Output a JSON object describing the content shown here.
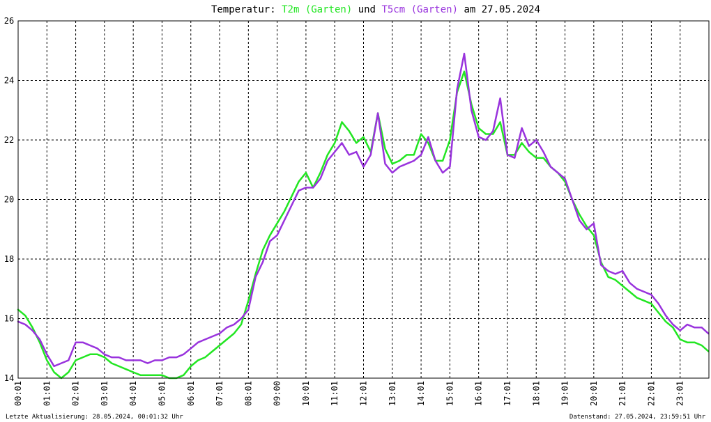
{
  "chart_data": {
    "type": "line",
    "title": {
      "prefix": "Temperatur:",
      "series1_label": "T2m (Garten)",
      "connector": "und",
      "series2_label": "T5cm (Garten)",
      "date_text": "am 27.05.2024"
    },
    "ylim": [
      14,
      26
    ],
    "yticks": [
      "14",
      "16",
      "18",
      "20",
      "22",
      "24",
      "26"
    ],
    "xlim": [
      0,
      24
    ],
    "xticks": [
      "00:01",
      "01:01",
      "02:01",
      "03:01",
      "04:01",
      "05:01",
      "06:01",
      "07:01",
      "08:01",
      "09:00",
      "10:01",
      "11:01",
      "12:01",
      "13:01",
      "14:01",
      "15:01",
      "16:01",
      "17:01",
      "18:01",
      "19:01",
      "20:01",
      "21:01",
      "22:01",
      "23:01"
    ],
    "grid": true,
    "footer_left": "Letzte Aktualisierung: 28.05.2024, 00:01:32 Uhr",
    "footer_right": "Datenstand: 27.05.2024, 23:59:51 Uhr",
    "series": [
      {
        "name": "T2m (Garten)",
        "color": "#22e622",
        "x": [
          0.0,
          0.25,
          0.5,
          0.75,
          1.0,
          1.25,
          1.5,
          1.75,
          2.0,
          2.25,
          2.5,
          2.75,
          3.0,
          3.25,
          3.5,
          3.75,
          4.0,
          4.25,
          4.5,
          4.75,
          5.0,
          5.25,
          5.5,
          5.75,
          6.0,
          6.25,
          6.5,
          6.75,
          7.0,
          7.25,
          7.5,
          7.75,
          8.0,
          8.25,
          8.5,
          8.75,
          9.0,
          9.25,
          9.5,
          9.75,
          10.0,
          10.25,
          10.5,
          10.75,
          11.0,
          11.25,
          11.5,
          11.75,
          12.0,
          12.25,
          12.5,
          12.75,
          13.0,
          13.25,
          13.5,
          13.75,
          14.0,
          14.25,
          14.5,
          14.75,
          15.0,
          15.25,
          15.5,
          15.75,
          16.0,
          16.25,
          16.5,
          16.75,
          17.0,
          17.25,
          17.5,
          17.75,
          18.0,
          18.25,
          18.5,
          18.75,
          19.0,
          19.25,
          19.5,
          19.75,
          20.0,
          20.25,
          20.5,
          20.75,
          21.0,
          21.25,
          21.5,
          21.75,
          22.0,
          22.25,
          22.5,
          22.75,
          23.0,
          23.25,
          23.5,
          23.75,
          23.98
        ],
        "values": [
          16.3,
          16.1,
          15.7,
          15.2,
          14.6,
          14.2,
          14.0,
          14.2,
          14.6,
          14.7,
          14.8,
          14.8,
          14.7,
          14.5,
          14.4,
          14.3,
          14.2,
          14.1,
          14.1,
          14.1,
          14.1,
          14.0,
          14.0,
          14.1,
          14.4,
          14.6,
          14.7,
          14.9,
          15.1,
          15.3,
          15.5,
          15.8,
          16.6,
          17.5,
          18.3,
          18.8,
          19.2,
          19.6,
          20.1,
          20.6,
          20.9,
          20.4,
          20.9,
          21.5,
          21.9,
          22.6,
          22.3,
          21.9,
          22.1,
          21.6,
          22.9,
          21.7,
          21.2,
          21.3,
          21.5,
          21.5,
          22.2,
          21.9,
          21.3,
          21.3,
          22.0,
          23.6,
          24.3,
          23.2,
          22.4,
          22.2,
          22.2,
          22.6,
          21.5,
          21.5,
          21.9,
          21.6,
          21.4,
          21.4,
          21.1,
          20.9,
          20.6,
          20.0,
          19.5,
          19.1,
          18.8,
          17.9,
          17.4,
          17.3,
          17.1,
          16.9,
          16.7,
          16.6,
          16.5,
          16.2,
          15.9,
          15.7,
          15.3,
          15.2,
          15.2,
          15.1,
          14.9
        ]
      },
      {
        "name": "T5cm (Garten)",
        "color": "#9933dd",
        "x": [
          0.0,
          0.25,
          0.5,
          0.75,
          1.0,
          1.25,
          1.5,
          1.75,
          2.0,
          2.25,
          2.5,
          2.75,
          3.0,
          3.25,
          3.5,
          3.75,
          4.0,
          4.25,
          4.5,
          4.75,
          5.0,
          5.25,
          5.5,
          5.75,
          6.0,
          6.25,
          6.5,
          6.75,
          7.0,
          7.25,
          7.5,
          7.75,
          8.0,
          8.25,
          8.5,
          8.75,
          9.0,
          9.25,
          9.5,
          9.75,
          10.0,
          10.25,
          10.5,
          10.75,
          11.0,
          11.25,
          11.5,
          11.75,
          12.0,
          12.25,
          12.5,
          12.75,
          13.0,
          13.25,
          13.5,
          13.75,
          14.0,
          14.25,
          14.5,
          14.75,
          15.0,
          15.25,
          15.5,
          15.75,
          16.0,
          16.25,
          16.5,
          16.75,
          17.0,
          17.25,
          17.5,
          17.75,
          18.0,
          18.25,
          18.5,
          18.75,
          19.0,
          19.25,
          19.5,
          19.75,
          20.0,
          20.25,
          20.5,
          20.75,
          21.0,
          21.25,
          21.5,
          21.75,
          22.0,
          22.25,
          22.5,
          22.75,
          23.0,
          23.25,
          23.5,
          23.75,
          23.98
        ],
        "values": [
          15.9,
          15.8,
          15.6,
          15.3,
          14.8,
          14.4,
          14.5,
          14.6,
          15.2,
          15.2,
          15.1,
          15.0,
          14.8,
          14.7,
          14.7,
          14.6,
          14.6,
          14.6,
          14.5,
          14.6,
          14.6,
          14.7,
          14.7,
          14.8,
          15.0,
          15.2,
          15.3,
          15.4,
          15.5,
          15.7,
          15.8,
          16.0,
          16.3,
          17.4,
          17.9,
          18.6,
          18.8,
          19.3,
          19.8,
          20.3,
          20.4,
          20.4,
          20.7,
          21.3,
          21.6,
          21.9,
          21.5,
          21.6,
          21.1,
          21.5,
          22.9,
          21.2,
          20.9,
          21.1,
          21.2,
          21.3,
          21.5,
          22.1,
          21.3,
          20.9,
          21.1,
          23.7,
          24.9,
          23.0,
          22.1,
          22.0,
          22.3,
          23.4,
          21.5,
          21.4,
          22.4,
          21.8,
          22.0,
          21.6,
          21.1,
          20.9,
          20.7,
          20.0,
          19.3,
          19.0,
          19.2,
          17.8,
          17.6,
          17.5,
          17.6,
          17.2,
          17.0,
          16.9,
          16.8,
          16.5,
          16.1,
          15.8,
          15.6,
          15.8,
          15.7,
          15.7,
          15.5
        ]
      }
    ]
  }
}
